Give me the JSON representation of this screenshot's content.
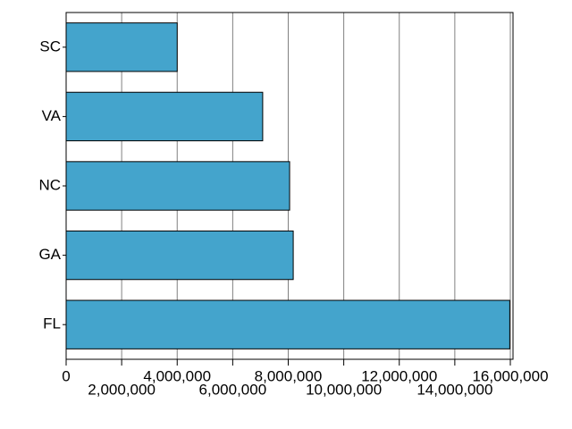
{
  "chart_data": {
    "type": "bar",
    "orientation": "horizontal",
    "categories": [
      "FL",
      "GA",
      "NC",
      "VA",
      "SC"
    ],
    "values": [
      15980000,
      8180000,
      8050000,
      7080000,
      4000000
    ],
    "color": "#44a4cc",
    "xlim": [
      0,
      16000000
    ],
    "xticks": [
      0,
      {
        "value": 2000000,
        "label": "2,000,000"
      },
      {
        "value": 4000000,
        "label": "4,000,000"
      },
      {
        "value": 6000000,
        "label": "6,000,000"
      },
      {
        "value": 8000000,
        "label": "8,000,000"
      },
      {
        "value": 10000000,
        "label": "10,000,000"
      },
      {
        "value": 12000000,
        "label": "12,000,000"
      },
      {
        "value": 14000000,
        "label": "14,000,000"
      },
      {
        "value": 16000000,
        "label": "16,000,000"
      }
    ],
    "grid": true
  }
}
